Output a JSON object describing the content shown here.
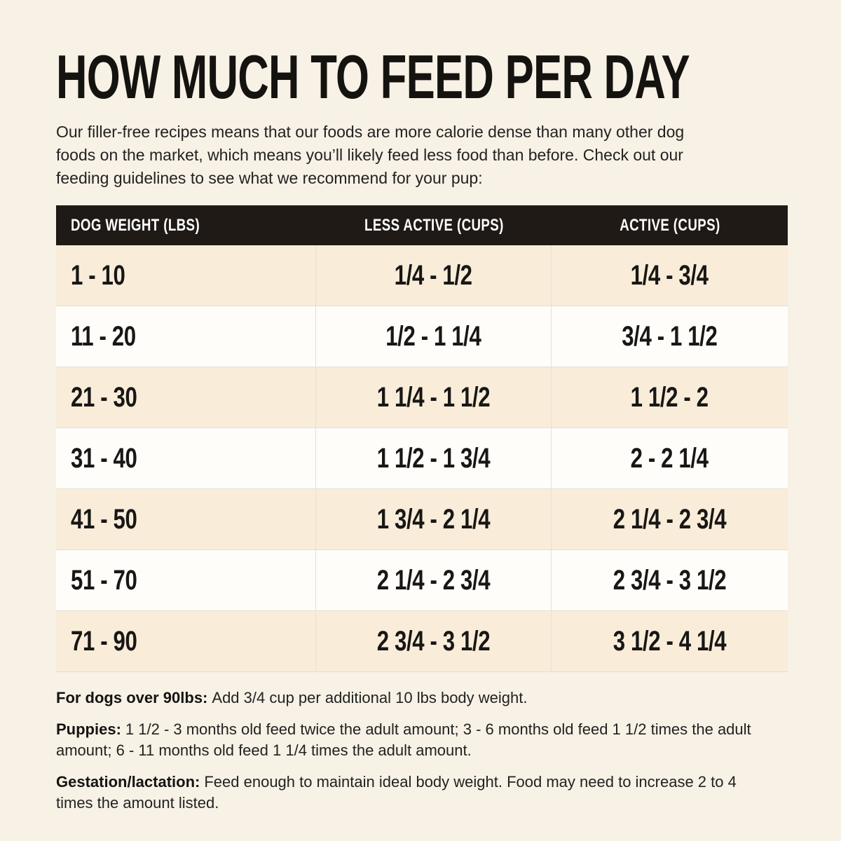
{
  "page": {
    "title": "HOW MUCH TO FEED PER DAY",
    "intro_lines": [
      "Our filler-free recipes means that our foods are more calorie dense than many other dog",
      "foods on the market, which means you’ll likely feed less food than before. Check out our",
      "feeding guidelines to see what we recommend for your pup:"
    ]
  },
  "table": {
    "columns": [
      "DOG WEIGHT (LBS)",
      "LESS ACTIVE (CUPS)",
      "ACTIVE (CUPS)"
    ],
    "rows": [
      {
        "weight": "1 - 10",
        "less_active": "1/4 - 1/2",
        "active": "1/4 - 3/4"
      },
      {
        "weight": "11 - 20",
        "less_active": "1/2 - 1 1/4",
        "active": "3/4 - 1 1/2"
      },
      {
        "weight": "21 - 30",
        "less_active": "1 1/4 - 1 1/2",
        "active": "1 1/2 - 2"
      },
      {
        "weight": "31 - 40",
        "less_active": "1 1/2 - 1 3/4",
        "active": "2 - 2 1/4"
      },
      {
        "weight": "41 - 50",
        "less_active": "1 3/4 - 2 1/4",
        "active": "2 1/4 - 2 3/4"
      },
      {
        "weight": "51 - 70",
        "less_active": "2 1/4 - 2 3/4",
        "active": "2 3/4 - 3 1/2"
      },
      {
        "weight": "71 - 90",
        "less_active": "2 3/4 - 3 1/2",
        "active": "3 1/2 - 4 1/4"
      }
    ]
  },
  "notes": [
    {
      "lead": "For dogs over 90lbs:",
      "text": "Add 3/4 cup per additional 10 lbs body weight."
    },
    {
      "lead": "Puppies:",
      "text": "1 1/2 - 3 months old feed twice the adult amount; 3 - 6 months old feed 1 1/2 times the adult amount; 6 - 11 months old feed 1 1/4 times the adult amount."
    },
    {
      "lead": "Gestation/lactation:",
      "text": "Feed enough to maintain ideal body weight. Food may need to increase 2 to 4 times the amount listed."
    }
  ],
  "colors": {
    "page_background": "#f8f1e6",
    "header_background": "#201a16",
    "header_text": "#ffffff",
    "row_cream": "#f9edda",
    "row_white": "#fffdfa",
    "text": "#1b1b19"
  }
}
